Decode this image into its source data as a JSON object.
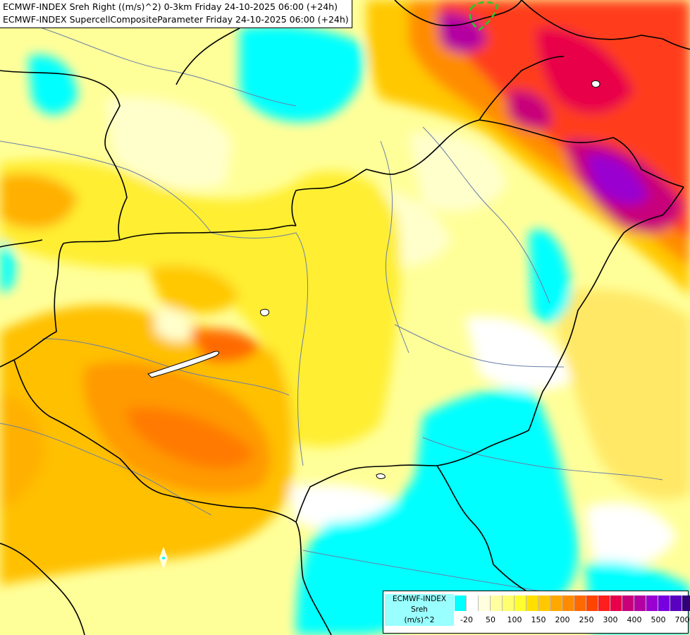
{
  "titles": {
    "line1": "ECMWF-INDEX Sreh Right ((m/s)^2) 0-3km Friday 24-10-2025 06:00 (+24h)",
    "line2": "ECMWF-INDEX SupercellCompositeParameter Friday 24-10-2025 06:00 (+24h)"
  },
  "legend": {
    "label_lines": [
      "ECMWF-INDEX",
      "Sreh",
      "(m/s)^2"
    ],
    "colors": [
      "#00ffff",
      "#ffffff",
      "#ffffe0",
      "#ffffa0",
      "#ffff70",
      "#ffff30",
      "#ffe000",
      "#ffc800",
      "#ffa800",
      "#ff8c00",
      "#ff6a00",
      "#ff4400",
      "#ff1e1e",
      "#e8004a",
      "#c8007a",
      "#b400a0",
      "#9a00d0",
      "#7800e0",
      "#5a00c0",
      "#30007a"
    ],
    "ticks": [
      "-20",
      "50",
      "100",
      "150",
      "200",
      "250",
      "300",
      "400",
      "500",
      "700"
    ]
  },
  "colors": {
    "cyan": "#00ffff",
    "white": "#ffffff",
    "pale_yellow": "#ffff99",
    "yellow": "#ffee33",
    "orange": "#ffa500",
    "dark_orange": "#ff7a00",
    "red": "#ff2020",
    "purple": "#9b00e0",
    "border": "#000000",
    "river": "#6a7fa8"
  }
}
